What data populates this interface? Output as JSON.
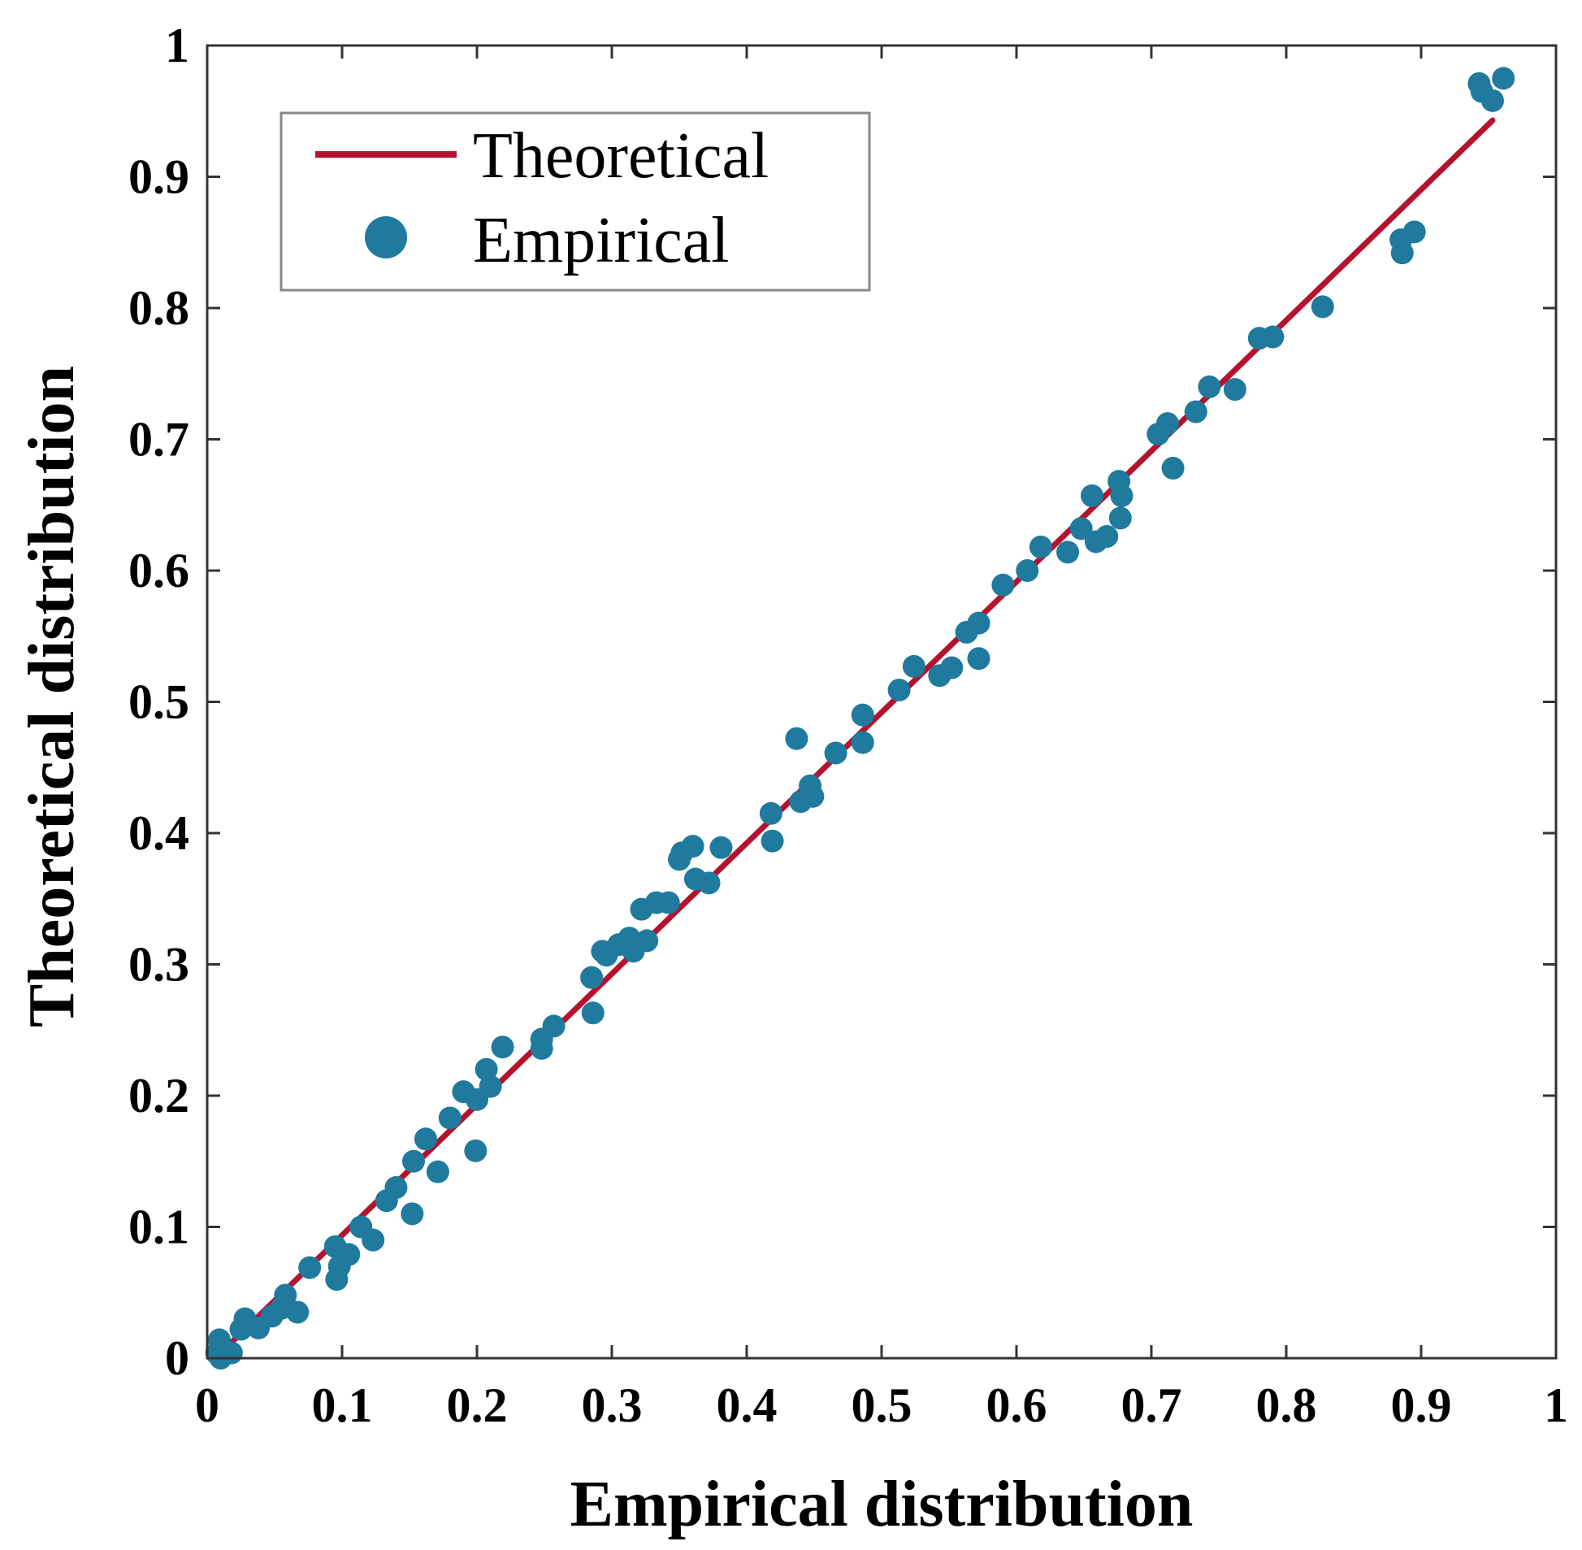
{
  "chart_data": {
    "type": "scatter",
    "title": "",
    "xlabel": "Empirical distribution",
    "ylabel": "Theoretical distribution",
    "xlim": [
      0,
      1
    ],
    "ylim": [
      0,
      1
    ],
    "grid": false,
    "legend_position": "top-left",
    "x_ticks": [
      "0",
      "0.1",
      "0.2",
      "0.3",
      "0.4",
      "0.5",
      "0.6",
      "0.7",
      "0.8",
      "0.9",
      "1"
    ],
    "y_ticks": [
      "0",
      "0.1",
      "0.2",
      "0.3",
      "0.4",
      "0.5",
      "0.6",
      "0.7",
      "0.8",
      "0.9",
      "1"
    ],
    "series": [
      {
        "name": "Theoretical",
        "kind": "line",
        "color": "#b5122e",
        "points": [
          [
            0.018,
            0.012
          ],
          [
            0.953,
            0.943
          ]
        ]
      },
      {
        "name": "Empirical",
        "kind": "scatter",
        "color": "#1f7a9e",
        "points": [
          [
            0.007,
            0.004
          ],
          [
            0.009,
            0.014
          ],
          [
            0.01,
            0.0
          ],
          [
            0.018,
            0.004
          ],
          [
            0.025,
            0.022
          ],
          [
            0.028,
            0.03
          ],
          [
            0.038,
            0.023
          ],
          [
            0.048,
            0.032
          ],
          [
            0.055,
            0.038
          ],
          [
            0.058,
            0.048
          ],
          [
            0.067,
            0.035
          ],
          [
            0.076,
            0.069
          ],
          [
            0.095,
            0.085
          ],
          [
            0.096,
            0.06
          ],
          [
            0.098,
            0.07
          ],
          [
            0.105,
            0.079
          ],
          [
            0.114,
            0.1
          ],
          [
            0.123,
            0.09
          ],
          [
            0.133,
            0.12
          ],
          [
            0.14,
            0.13
          ],
          [
            0.152,
            0.11
          ],
          [
            0.153,
            0.15
          ],
          [
            0.162,
            0.167
          ],
          [
            0.171,
            0.142
          ],
          [
            0.18,
            0.183
          ],
          [
            0.19,
            0.203
          ],
          [
            0.199,
            0.158
          ],
          [
            0.2,
            0.197
          ],
          [
            0.207,
            0.22
          ],
          [
            0.21,
            0.207
          ],
          [
            0.219,
            0.237
          ],
          [
            0.248,
            0.236
          ],
          [
            0.248,
            0.243
          ],
          [
            0.257,
            0.253
          ],
          [
            0.285,
            0.29
          ],
          [
            0.286,
            0.263
          ],
          [
            0.293,
            0.31
          ],
          [
            0.296,
            0.307
          ],
          [
            0.305,
            0.315
          ],
          [
            0.313,
            0.32
          ],
          [
            0.316,
            0.31
          ],
          [
            0.322,
            0.342
          ],
          [
            0.326,
            0.318
          ],
          [
            0.333,
            0.347
          ],
          [
            0.342,
            0.347
          ],
          [
            0.35,
            0.38
          ],
          [
            0.352,
            0.385
          ],
          [
            0.36,
            0.39
          ],
          [
            0.362,
            0.365
          ],
          [
            0.372,
            0.362
          ],
          [
            0.381,
            0.389
          ],
          [
            0.418,
            0.415
          ],
          [
            0.419,
            0.394
          ],
          [
            0.437,
            0.472
          ],
          [
            0.44,
            0.424
          ],
          [
            0.447,
            0.436
          ],
          [
            0.449,
            0.428
          ],
          [
            0.466,
            0.461
          ],
          [
            0.486,
            0.49
          ],
          [
            0.486,
            0.469
          ],
          [
            0.513,
            0.509
          ],
          [
            0.524,
            0.527
          ],
          [
            0.543,
            0.52
          ],
          [
            0.552,
            0.526
          ],
          [
            0.563,
            0.553
          ],
          [
            0.572,
            0.56
          ],
          [
            0.572,
            0.533
          ],
          [
            0.59,
            0.589
          ],
          [
            0.608,
            0.6
          ],
          [
            0.618,
            0.618
          ],
          [
            0.638,
            0.614
          ],
          [
            0.648,
            0.632
          ],
          [
            0.656,
            0.657
          ],
          [
            0.659,
            0.622
          ],
          [
            0.667,
            0.626
          ],
          [
            0.676,
            0.668
          ],
          [
            0.677,
            0.64
          ],
          [
            0.678,
            0.657
          ],
          [
            0.705,
            0.704
          ],
          [
            0.712,
            0.712
          ],
          [
            0.716,
            0.678
          ],
          [
            0.733,
            0.721
          ],
          [
            0.743,
            0.74
          ],
          [
            0.762,
            0.738
          ],
          [
            0.78,
            0.777
          ],
          [
            0.79,
            0.778
          ],
          [
            0.827,
            0.801
          ],
          [
            0.885,
            0.852
          ],
          [
            0.886,
            0.842
          ],
          [
            0.895,
            0.858
          ],
          [
            0.943,
            0.971
          ],
          [
            0.945,
            0.965
          ],
          [
            0.953,
            0.958
          ],
          [
            0.961,
            0.975
          ]
        ]
      }
    ]
  }
}
